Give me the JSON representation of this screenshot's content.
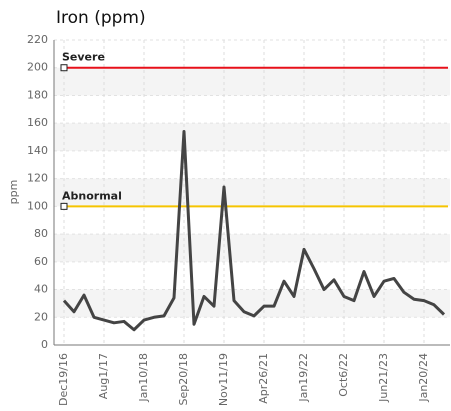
{
  "chart_data": {
    "type": "line",
    "title": "Iron (ppm)",
    "y_label": "ppm",
    "categories": [
      "Dec19/16",
      null,
      null,
      null,
      "Aug1/17",
      null,
      null,
      null,
      "Jan10/18",
      null,
      null,
      null,
      "Sep20/18",
      null,
      null,
      null,
      "Nov11/19",
      null,
      null,
      null,
      "Apr26/21",
      null,
      null,
      null,
      "Jan19/22",
      null,
      null,
      null,
      "Oct6/22",
      null,
      null,
      null,
      "Jun21/23",
      null,
      null,
      null,
      "Jan20/24",
      null,
      null
    ],
    "series": [
      {
        "color": "#444444",
        "values": [
          32,
          24,
          36,
          20,
          18,
          16,
          17,
          11,
          18,
          20,
          21,
          34,
          154,
          15,
          35,
          28,
          114,
          32,
          24,
          21,
          28,
          28,
          46,
          35,
          69,
          55,
          40,
          47,
          35,
          32,
          53,
          35,
          46,
          48,
          38,
          33,
          32,
          29,
          22
        ]
      }
    ],
    "thresholds": [
      {
        "name": "Severe",
        "value": 200,
        "color": "#e8101a"
      },
      {
        "name": "Abnormal",
        "value": 100,
        "color": "#f5c400"
      }
    ],
    "ylim": [
      0,
      220
    ],
    "yticks": [
      0,
      20,
      40,
      60,
      80,
      100,
      120,
      140,
      160,
      180,
      200,
      220
    ],
    "grid": true
  }
}
